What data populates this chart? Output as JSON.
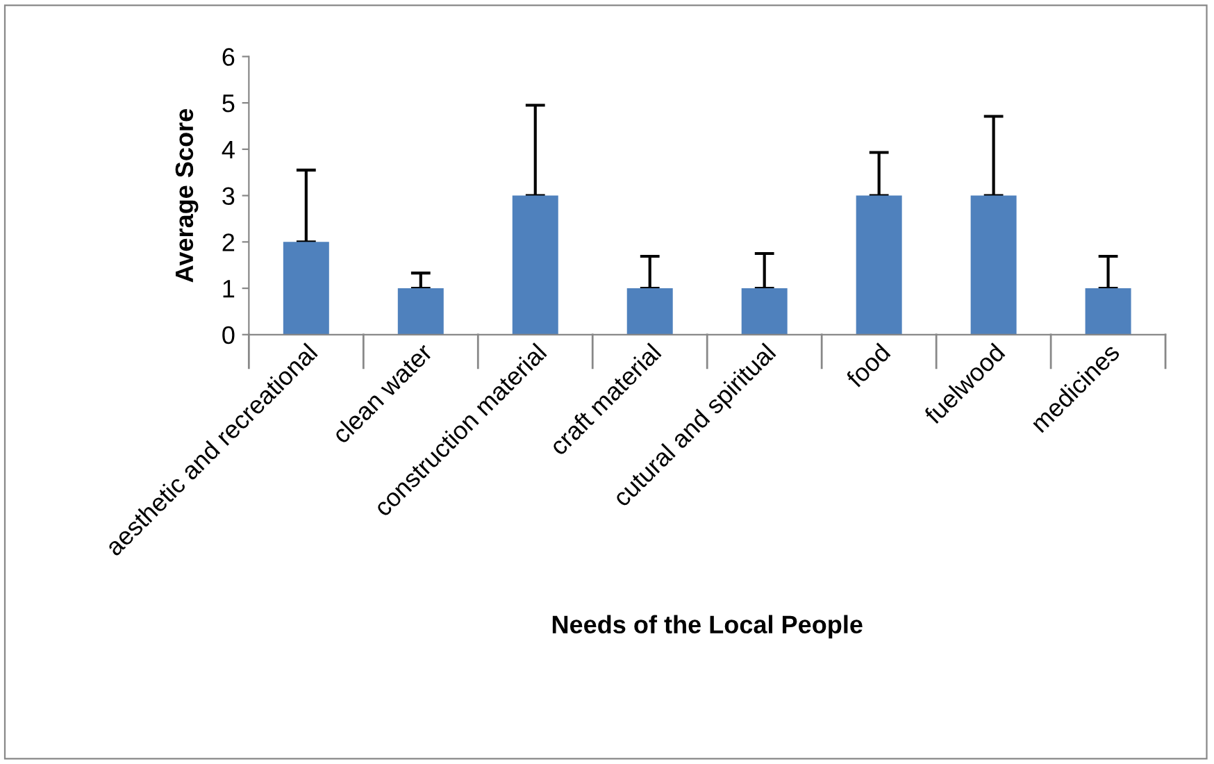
{
  "chart_data": {
    "type": "bar",
    "xlabel": "Needs of the Local People",
    "ylabel": "Average Score",
    "categories": [
      "aesthetic and recreational",
      "clean water",
      "construction material",
      "craft material",
      "cutural and spiritual",
      "food",
      "fuelwood",
      "medicines"
    ],
    "values": [
      2,
      1,
      3,
      1,
      1,
      3,
      3,
      1
    ],
    "errors": [
      [
        2,
        3.55
      ],
      [
        1,
        1.33
      ],
      [
        3,
        4.95
      ],
      [
        1,
        1.69
      ],
      [
        1,
        1.75
      ],
      [
        3,
        3.93
      ],
      [
        3,
        4.71
      ],
      [
        1,
        1.69
      ]
    ],
    "color": "#4f81bd",
    "ylim": [
      0,
      6
    ],
    "yticks": [
      0,
      1,
      2,
      3,
      4,
      5,
      6
    ],
    "grid": false,
    "legend": false
  }
}
